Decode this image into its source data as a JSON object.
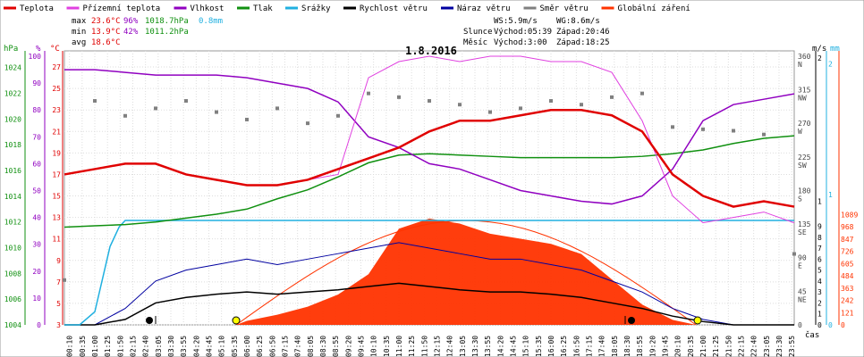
{
  "chart_data": {
    "type": "line",
    "title": "1.8.2016",
    "xlabel": "čas",
    "legend": [
      {
        "label": "Teplota",
        "color": "#e00000"
      },
      {
        "label": "Přízemní teplota",
        "color": "#e040e0"
      },
      {
        "label": "Vlhkost",
        "color": "#9000c0"
      },
      {
        "label": "Tlak",
        "color": "#109010"
      },
      {
        "label": "Srážky",
        "color": "#20b0e0"
      },
      {
        "label": "Rychlost větru",
        "color": "#000000"
      },
      {
        "label": "Náraz větru",
        "color": "#0000a0"
      },
      {
        "label": "Směr větru",
        "color": "#808080"
      },
      {
        "label": "Globální záření",
        "color": "#ff3300"
      }
    ],
    "stats": {
      "max_label": "max",
      "max_temp": "23.6°C",
      "max_hum": "96%",
      "max_press": "1018.7hPa",
      "rain": "0.8mm",
      "min_label": "min",
      "min_temp": "13.9°C",
      "min_hum": "42%",
      "min_press": "1011.2hPa",
      "avg_label": "avg",
      "avg_temp": "18.6°C"
    },
    "astro": {
      "ws": "WS:5.9m/s",
      "wg": "WG:8.6m/s",
      "sun_label": "Slunce",
      "sun_rise": "Východ:05:39",
      "sun_set": "Západ:20:46",
      "moon_label": "Měsíc",
      "moon_rise": "Východ:3:00",
      "moon_set": "Západ:18:25"
    },
    "axes": {
      "pressure": {
        "unit": "hPa",
        "ticks": [
          "1024",
          "1022",
          "1020",
          "1018",
          "1016",
          "1014",
          "1012",
          "1010",
          "1008",
          "1006",
          "1004"
        ]
      },
      "humidity": {
        "unit": "%",
        "ticks": [
          "100",
          "90",
          "80",
          "70",
          "60",
          "50",
          "40",
          "30",
          "20",
          "10",
          "0"
        ]
      },
      "temperature": {
        "unit": "°C",
        "ticks": [
          "27",
          "25",
          "23",
          "21",
          "19",
          "17",
          "15",
          "13",
          "11",
          "9",
          "7",
          "5",
          "3"
        ]
      },
      "direction": {
        "ticks": [
          "360",
          "N",
          "315",
          "NW",
          "270",
          "W",
          "225",
          "SW",
          "180",
          "S",
          "135",
          "SE",
          "90",
          "E",
          "45",
          "NE",
          "0"
        ]
      },
      "wind": {
        "unit": "m/s",
        "ticks": [
          "2",
          "1",
          "9",
          "8",
          "7",
          "6",
          "5",
          "4",
          "3",
          "2",
          "1",
          "0"
        ]
      },
      "rain": {
        "unit": "mm",
        "ticks": [
          "2",
          "1",
          "0"
        ]
      },
      "radiation": {
        "ticks": [
          "1089",
          "968",
          "847",
          "726",
          "605",
          "484",
          "363",
          "242",
          "121",
          "0"
        ]
      },
      "time_ticks": [
        "00:10",
        "00:35",
        "01:00",
        "01:25",
        "01:50",
        "02:15",
        "02:40",
        "03:05",
        "03:30",
        "03:55",
        "04:20",
        "04:45",
        "05:10",
        "05:35",
        "06:00",
        "06:25",
        "06:50",
        "07:15",
        "07:40",
        "08:05",
        "08:30",
        "08:55",
        "09:20",
        "09:45",
        "10:10",
        "10:35",
        "11:00",
        "11:25",
        "11:50",
        "12:15",
        "12:40",
        "13:05",
        "13:30",
        "13:55",
        "14:20",
        "14:45",
        "15:10",
        "15:35",
        "16:00",
        "16:25",
        "16:50",
        "17:15",
        "17:40",
        "18:05",
        "18:30",
        "18:55",
        "19:20",
        "19:45",
        "20:10",
        "20:35",
        "21:00",
        "21:25",
        "21:50",
        "22:15",
        "22:40",
        "23:05",
        "23:30",
        "23:55"
      ]
    },
    "series": {
      "temperature": {
        "x_hours": [
          0,
          1,
          2,
          3,
          4,
          5,
          6,
          7,
          8,
          9,
          10,
          11,
          12,
          13,
          14,
          15,
          16,
          17,
          18,
          19,
          20,
          21,
          22,
          23,
          24
        ],
        "values": [
          17.0,
          17.5,
          18.0,
          18.0,
          17.0,
          16.5,
          16.0,
          16.0,
          16.5,
          17.5,
          18.5,
          19.5,
          21.0,
          22.0,
          22.0,
          22.5,
          23.0,
          23.0,
          22.5,
          21.0,
          17.0,
          15.0,
          14.0,
          14.5,
          14.0
        ]
      },
      "ground_temperature": {
        "x_hours": [
          0,
          1,
          2,
          3,
          4,
          5,
          6,
          7,
          8,
          9,
          10,
          11,
          12,
          13,
          14,
          15,
          16,
          17,
          18,
          19,
          20,
          21,
          22,
          23,
          24
        ],
        "values": [
          17.0,
          17.5,
          18.0,
          18.0,
          17.0,
          16.5,
          16.0,
          16.0,
          16.5,
          17.0,
          26.0,
          27.5,
          28.0,
          27.5,
          28.0,
          28.0,
          27.5,
          27.5,
          26.5,
          22.0,
          15.0,
          12.5,
          13.0,
          13.5,
          12.5
        ]
      },
      "humidity": {
        "x_hours": [
          0,
          1,
          2,
          3,
          4,
          5,
          6,
          7,
          8,
          9,
          10,
          11,
          12,
          13,
          14,
          15,
          16,
          17,
          18,
          19,
          20,
          21,
          22,
          23,
          24
        ],
        "values": [
          95,
          95,
          94,
          93,
          93,
          93,
          92,
          90,
          88,
          83,
          70,
          66,
          60,
          58,
          54,
          50,
          48,
          46,
          45,
          48,
          58,
          76,
          82,
          84,
          86
        ]
      },
      "pressure": {
        "x_hours": [
          0,
          1,
          2,
          3,
          4,
          5,
          6,
          7,
          8,
          9,
          10,
          11,
          12,
          13,
          14,
          15,
          16,
          17,
          18,
          19,
          20,
          21,
          22,
          23,
          24
        ],
        "values": [
          1011.6,
          1011.7,
          1011.8,
          1012.0,
          1012.3,
          1012.6,
          1013.0,
          1013.8,
          1014.5,
          1015.5,
          1016.6,
          1017.2,
          1017.3,
          1017.2,
          1017.1,
          1017.0,
          1017.0,
          1017.0,
          1017.0,
          1017.1,
          1017.3,
          1017.6,
          1018.1,
          1018.5,
          1018.7
        ]
      },
      "rain": {
        "x_hours": [
          0,
          0.5,
          1.0,
          1.2,
          1.5,
          1.8,
          2.0,
          3.0,
          24
        ],
        "values": [
          0,
          0,
          0.1,
          0.3,
          0.6,
          0.75,
          0.8,
          0.8,
          0.8
        ]
      },
      "wind_speed": {
        "x_hours": [
          0,
          1,
          2,
          3,
          4,
          5,
          6,
          7,
          8,
          9,
          10,
          11,
          12,
          13,
          14,
          15,
          16,
          17,
          18,
          19,
          20,
          21,
          22,
          23,
          24
        ],
        "values": [
          0,
          0,
          0.5,
          2.0,
          2.5,
          2.8,
          3.0,
          2.8,
          3.0,
          3.2,
          3.5,
          3.8,
          3.5,
          3.2,
          3.0,
          3.0,
          2.8,
          2.5,
          2.0,
          1.5,
          0.8,
          0.3,
          0,
          0,
          0
        ]
      },
      "wind_gust": {
        "x_hours": [
          0,
          1,
          2,
          3,
          4,
          5,
          6,
          7,
          8,
          9,
          10,
          11,
          12,
          13,
          14,
          15,
          16,
          17,
          18,
          19,
          20,
          21,
          22,
          23,
          24
        ],
        "values": [
          0,
          0,
          1.5,
          4.0,
          5.0,
          5.5,
          6.0,
          5.5,
          6.0,
          6.5,
          7.0,
          7.5,
          7.0,
          6.5,
          6.0,
          6.0,
          5.5,
          5.0,
          4.0,
          3.0,
          1.5,
          0.5,
          0,
          0,
          0
        ]
      },
      "wind_direction": {
        "x_hours": [
          0,
          1,
          2,
          3,
          4,
          5,
          6,
          7,
          8,
          9,
          10,
          11,
          12,
          13,
          14,
          15,
          16,
          17,
          18,
          19,
          20,
          21,
          22,
          23,
          24
        ],
        "values": [
          60,
          300,
          280,
          290,
          300,
          285,
          275,
          290,
          270,
          280,
          310,
          305,
          300,
          295,
          285,
          290,
          300,
          295,
          305,
          310,
          265,
          262,
          260,
          255,
          95
        ]
      },
      "radiation": {
        "x_hours": [
          5.65,
          6,
          7,
          8,
          9,
          10,
          11,
          12,
          13,
          14,
          15,
          16,
          17,
          18,
          19,
          20,
          20.77
        ],
        "values": [
          0,
          40,
          100,
          180,
          300,
          500,
          950,
          1050,
          1000,
          900,
          850,
          800,
          700,
          450,
          200,
          50,
          0
        ]
      }
    }
  }
}
